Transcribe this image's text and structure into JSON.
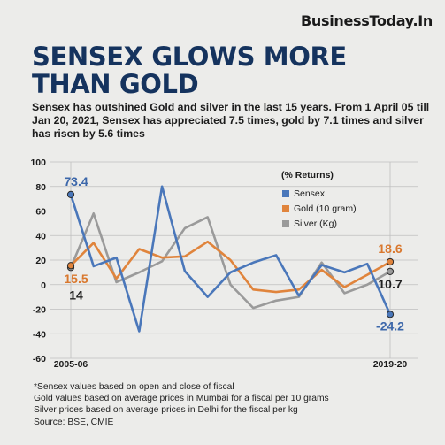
{
  "brand": "BusinessToday.In",
  "headline": [
    "SENSEX GLOWS MORE",
    "THAN GOLD"
  ],
  "standfirst": "Sensex has outshined Gold and silver in the last 15 years. From 1 April 05 till Jan 20, 2021, Sensex has appreciated 7.5 times, gold by 7.1 times and silver has risen by 5.6 times",
  "notes": [
    "*Sensex values based on open and close of fiscal",
    "Gold values based on average prices in Mumbai for a fiscal per 10 grams",
    "Silver prices based on average prices in Delhi for the fiscal per kg",
    "Source: BSE, CMIE"
  ],
  "colors": {
    "headline": "#15335e",
    "sensex": "#4a77ba",
    "gold": "#e0843c",
    "silver": "#9a9a9a",
    "grid": "#bfbfbf",
    "point_label_blue": "#3c67aa",
    "point_label_orange": "#d9782e",
    "point_label_dark": "#222222"
  },
  "chart_data": {
    "type": "line",
    "unit_label": "(% Returns)",
    "x": [
      2005,
      2006,
      2007,
      2008,
      2009,
      2010,
      2011,
      2012,
      2013,
      2014,
      2015,
      2016,
      2017,
      2018,
      2019
    ],
    "x_tick_labels": [
      {
        "at": 2005,
        "text": "2005-06"
      },
      {
        "at": 2019,
        "text": "2019-20"
      }
    ],
    "yticks": [
      100,
      80,
      60,
      40,
      20,
      0,
      -20,
      -40,
      -60
    ],
    "ylim": [
      -60,
      100
    ],
    "grid": true,
    "legend_position": "top-right",
    "series": [
      {
        "name": "Sensex",
        "color": "#4a77ba",
        "values": [
          73.4,
          15,
          22,
          -38,
          80,
          11,
          -10,
          10,
          18,
          24,
          -9,
          16,
          10,
          17,
          -24.2
        ]
      },
      {
        "name": "Gold (10 gram)",
        "color": "#e0843c",
        "values": [
          15.5,
          34,
          5,
          29,
          22,
          23,
          35,
          20,
          -4,
          -6,
          -4,
          12,
          -2,
          8,
          18.6
        ]
      },
      {
        "name": "Silver (Kg)",
        "color": "#9a9a9a",
        "values": [
          14,
          58,
          2,
          10,
          19,
          46,
          55,
          0,
          -19,
          -13,
          -10,
          18,
          -7,
          0,
          10.7
        ]
      }
    ],
    "point_labels": [
      {
        "series": "Sensex",
        "x": 2005,
        "text": "73.4"
      },
      {
        "series": "Gold (10 gram)",
        "x": 2005,
        "text": "15.5"
      },
      {
        "series": "Silver (Kg)",
        "x": 2005,
        "text": "14"
      },
      {
        "series": "Gold (10 gram)",
        "x": 2019,
        "text": "18.6"
      },
      {
        "series": "Silver (Kg)",
        "x": 2019,
        "text": "10.7"
      },
      {
        "series": "Sensex",
        "x": 2019,
        "text": "-24.2"
      }
    ]
  }
}
